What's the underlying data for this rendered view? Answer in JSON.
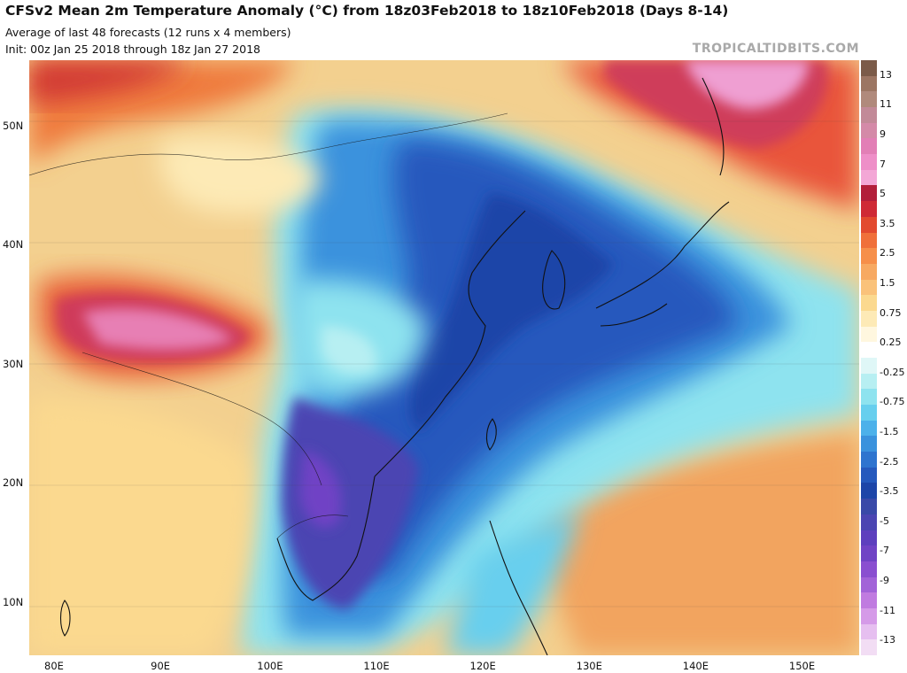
{
  "header": {
    "title": "CFSv2 Mean 2m Temperature Anomaly (°C) from 18z03Feb2018 to 18z10Feb2018 (Days 8-14)",
    "line1": "Average of last 48 forecasts (12 runs x 4 members)",
    "line2": "Init: 00z Jan 25 2018 through 18z Jan 27 2018",
    "brand": "TROPICALTIDBITS.COM"
  },
  "map": {
    "variable": "2m temperature anomaly",
    "units": "°C",
    "extent": {
      "lon_min": 77.5,
      "lon_max": 155.5,
      "lat_min": 5.5,
      "lat_max": 55.5
    },
    "lat_labels": [
      "50N",
      "40N",
      "30N",
      "20N",
      "10N"
    ],
    "lat_values": [
      50,
      40,
      30,
      20,
      10
    ],
    "lon_labels": [
      "80E",
      "90E",
      "100E",
      "110E",
      "120E",
      "130E",
      "140E",
      "150E"
    ],
    "lon_values": [
      80,
      90,
      100,
      110,
      120,
      130,
      140,
      150
    ]
  },
  "colorbar": {
    "labels": [
      "13",
      "11",
      "9",
      "7",
      "5",
      "3.5",
      "2.5",
      "1.5",
      "0.75",
      "0.25",
      "-0.25",
      "-0.75",
      "-1.5",
      "-2.5",
      "-3.5",
      "-5",
      "-7",
      "-9",
      "-11",
      "-13"
    ],
    "colors": [
      "#7b5b49",
      "#9c7663",
      "#b08a7c",
      "#c28a98",
      "#d48aa8",
      "#e27fb6",
      "#ee8fc8",
      "#f3a7d6",
      "#b21e3a",
      "#cf2a36",
      "#e24a2f",
      "#f0703a",
      "#f68f4a",
      "#f7a962",
      "#fac27a",
      "#fbd98f",
      "#fdeab6",
      "#fff7df",
      "#ffffff",
      "#dff7f7",
      "#b7eff2",
      "#8ee3ef",
      "#67cfee",
      "#4cb1ea",
      "#3a92dd",
      "#2e74cf",
      "#2559bd",
      "#1d45a8",
      "#3949a8",
      "#4b45b2",
      "#5d3fbe",
      "#7043c5",
      "#8a4fd0",
      "#a263d8",
      "#c07be0",
      "#d59ae8",
      "#e6bff0",
      "#f2ddf4"
    ]
  }
}
